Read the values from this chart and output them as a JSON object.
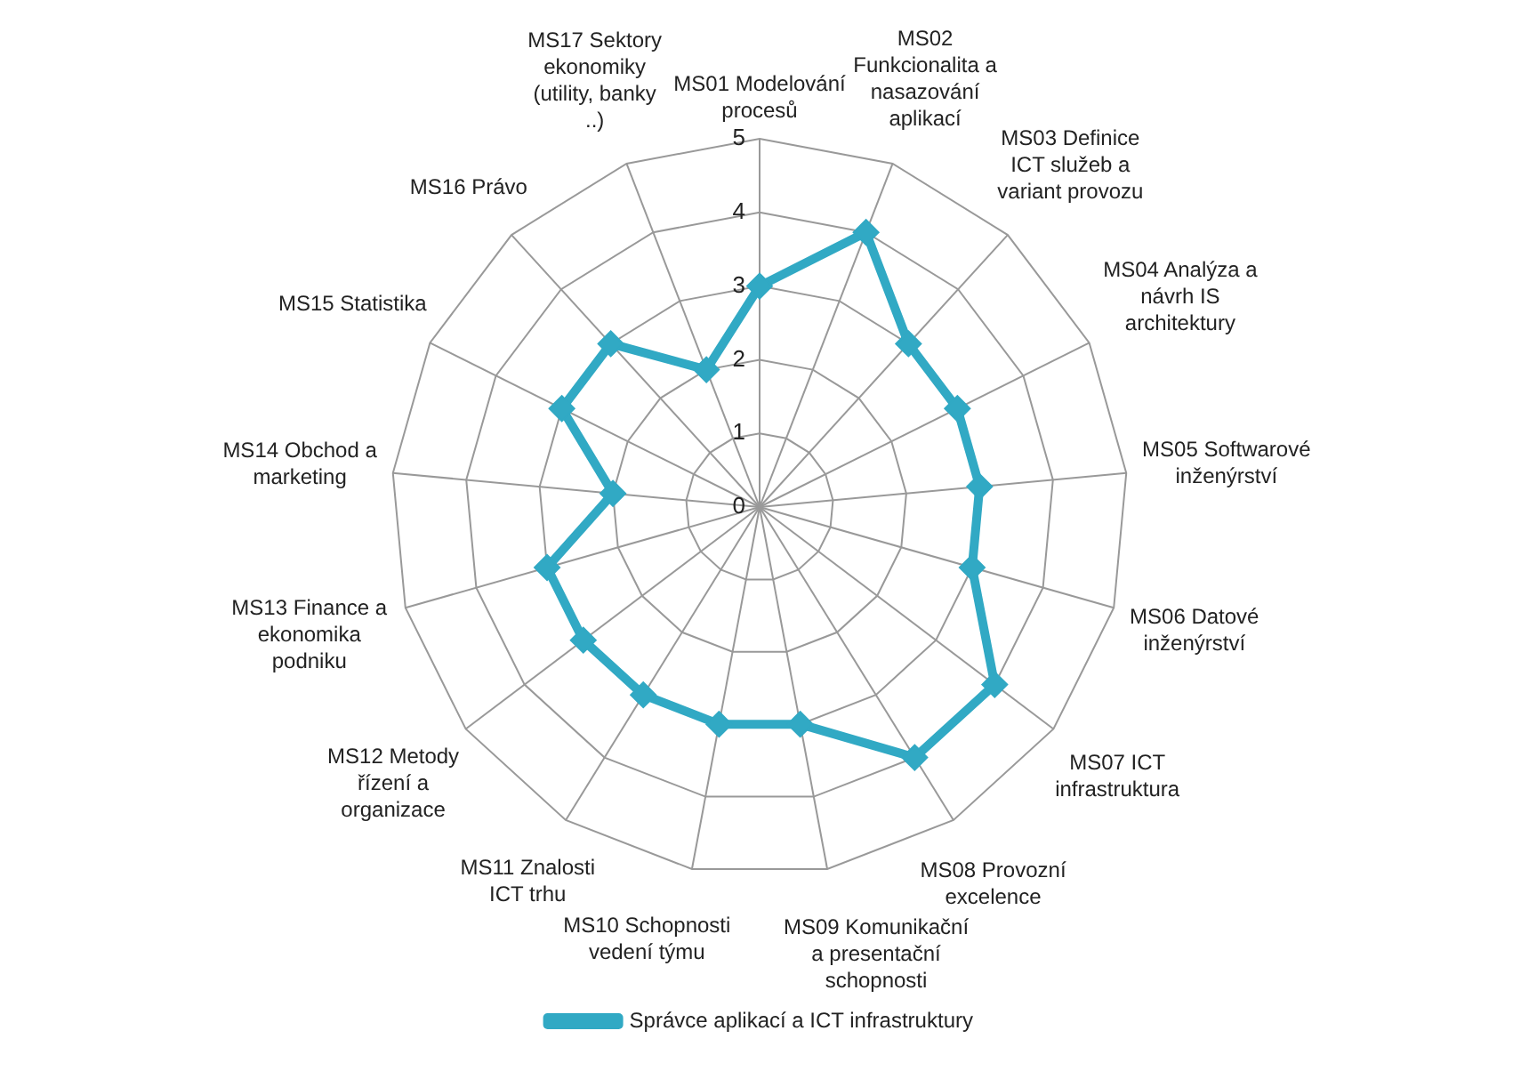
{
  "chart_data": {
    "type": "radar",
    "categories": [
      "MS01 Modelování procesů",
      "MS02 Funkcionalita a nasazování aplikací",
      "MS03 Definice ICT služeb a variant provozu",
      "MS04 Analýza a návrh IS architektury",
      "MS05 Softwarové inženýrství",
      "MS06 Datové inženýrství",
      "MS07 ICT infrastruktura",
      "MS08 Provozní excelence",
      "MS09 Komunikační a presentační schopnosti",
      "MS10 Schopnosti vedení týmu",
      "MS11 Znalosti ICT trhu",
      "MS12 Metody řízení a organizace",
      "MS13 Finance a ekonomika podniku",
      "MS14 Obchod a marketing",
      "MS15 Statistika",
      "MS16 Právo",
      "MS17 Sektory ekonomiky (utility, banky ..)"
    ],
    "series": [
      {
        "name": "Správce aplikací a ICT infrastruktury",
        "color": "#31a9c4",
        "values": [
          3,
          4,
          3,
          3,
          3,
          3,
          4,
          4,
          3,
          3,
          3,
          3,
          3,
          2,
          3,
          3,
          2
        ]
      }
    ],
    "ylim": [
      0,
      5
    ],
    "yticks": [
      0,
      1,
      2,
      3,
      4,
      5
    ],
    "grid": true,
    "legend": "bottom",
    "marker": "diamond",
    "line_style": "solid"
  }
}
